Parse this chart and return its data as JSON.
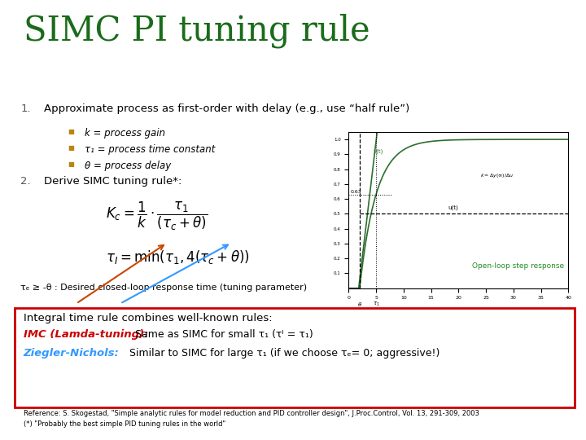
{
  "title": "SIMC PI tuning rule",
  "title_color": "#1a6b1a",
  "title_fontsize": 30,
  "bg_color": "#ffffff",
  "item1_text": "Approximate process as first-order with delay (e.g., use “half rule”)",
  "bullet_color": "#b8860b",
  "bullets": [
    "k = process gain",
    "τ₁ = process time constant",
    "θ = process delay"
  ],
  "item2_text": "Derive SIMC tuning rule*:",
  "tuning_note": "τₑ ≥ -θ : Desired closed-loop response time (tuning parameter)",
  "box_text_line1": "Integral time rule combines well-known rules:",
  "box_text_line2_pre": "IMC (Lamda-tuning):",
  "box_text_line2_mid": " Same as SIMC for small τ₁ (τᴵ = τ₁)",
  "box_text_line3_pre": "Ziegler-Nichols:",
  "box_text_line3_mid": " Similar to SIMC for large τ₁ (if we choose τₑ= 0; aggressive!)",
  "imc_color": "#cc0000",
  "zn_color": "#3399ff",
  "box_border_color": "#cc0000",
  "ref_line1": "Reference: S. Skogestad, \"Simple analytic rules for model reduction and PID controller design\", J.Proc.Control, Vol. 13, 291-309, 2003",
  "ref_line2": "(*) \"Probably the best simple PID tuning rules in the world\"",
  "openloop_label": "Open-loop step response",
  "openloop_color": "#228b22"
}
